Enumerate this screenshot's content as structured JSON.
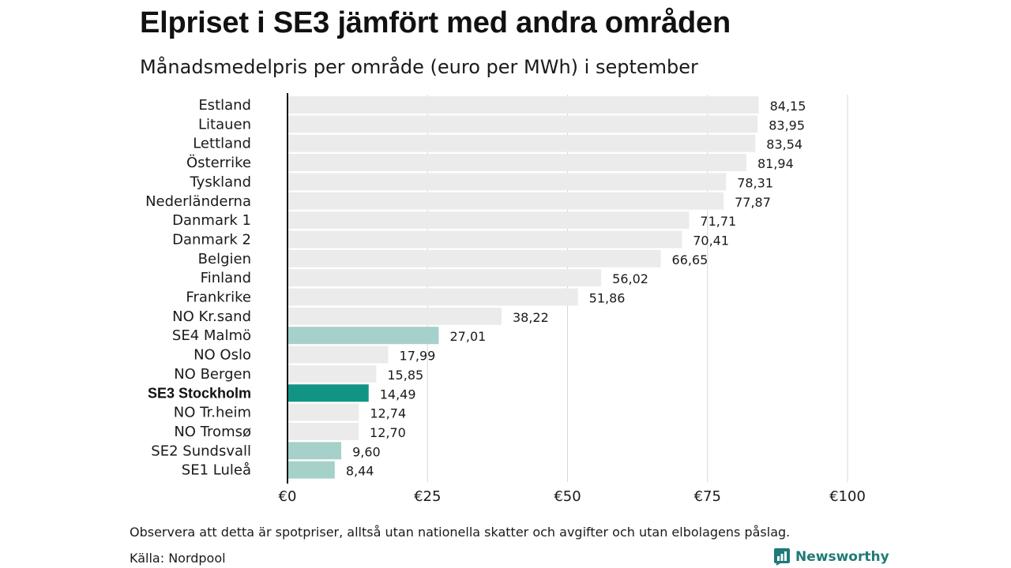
{
  "chart_data": {
    "type": "bar",
    "orientation": "horizontal",
    "title": "Elpriset i SE3 jämfört med andra områden",
    "subtitle": "Månadsmedelpris per område (euro per MWh) i september",
    "categories": [
      "Estland",
      "Litauen",
      "Lettland",
      "Österrike",
      "Tyskland",
      "Nederländerna",
      "Danmark 1",
      "Danmark 2",
      "Belgien",
      "Finland",
      "Frankrike",
      "NO Kr.sand",
      "SE4 Malmö",
      "NO Oslo",
      "NO Bergen",
      "SE3 Stockholm",
      "NO Tr.heim",
      "NO Tromsø",
      "SE2 Sundsvall",
      "SE1 Luleå"
    ],
    "values": [
      84.15,
      83.95,
      83.54,
      81.94,
      78.31,
      77.87,
      71.71,
      70.41,
      66.65,
      56.02,
      51.86,
      38.22,
      27.01,
      17.99,
      15.85,
      14.49,
      12.74,
      12.7,
      9.6,
      8.44
    ],
    "value_labels": [
      "84,15",
      "83,95",
      "83,54",
      "81,94",
      "78,31",
      "77,87",
      "71,71",
      "70,41",
      "66,65",
      "56,02",
      "51,86",
      "38,22",
      "27,01",
      "17,99",
      "15,85",
      "14,49",
      "12,74",
      "12,70",
      "9,60",
      "8,44"
    ],
    "xlim": [
      0,
      100
    ],
    "x_ticks": [
      0,
      25,
      50,
      75,
      100
    ],
    "x_tick_labels": [
      "€0",
      "€25",
      "€50",
      "€75",
      "€100"
    ],
    "grid": true,
    "highlight": "SE3 Stockholm",
    "colors": {
      "default": "#ebebeb",
      "swedish": "#a6d1ca",
      "highlight": "#129484",
      "grid": "#d7d7d7",
      "axis": "#111111"
    }
  },
  "footer": {
    "note": "Observera att detta är spotpriser, alltså utan nationella skatter och avgifter och utan elbolagens påslag.",
    "source": "Källa: Nordpool"
  },
  "brand": {
    "name": "Newsworthy",
    "icon": "newsworthy-logo-icon",
    "color": "#1f7a78"
  }
}
